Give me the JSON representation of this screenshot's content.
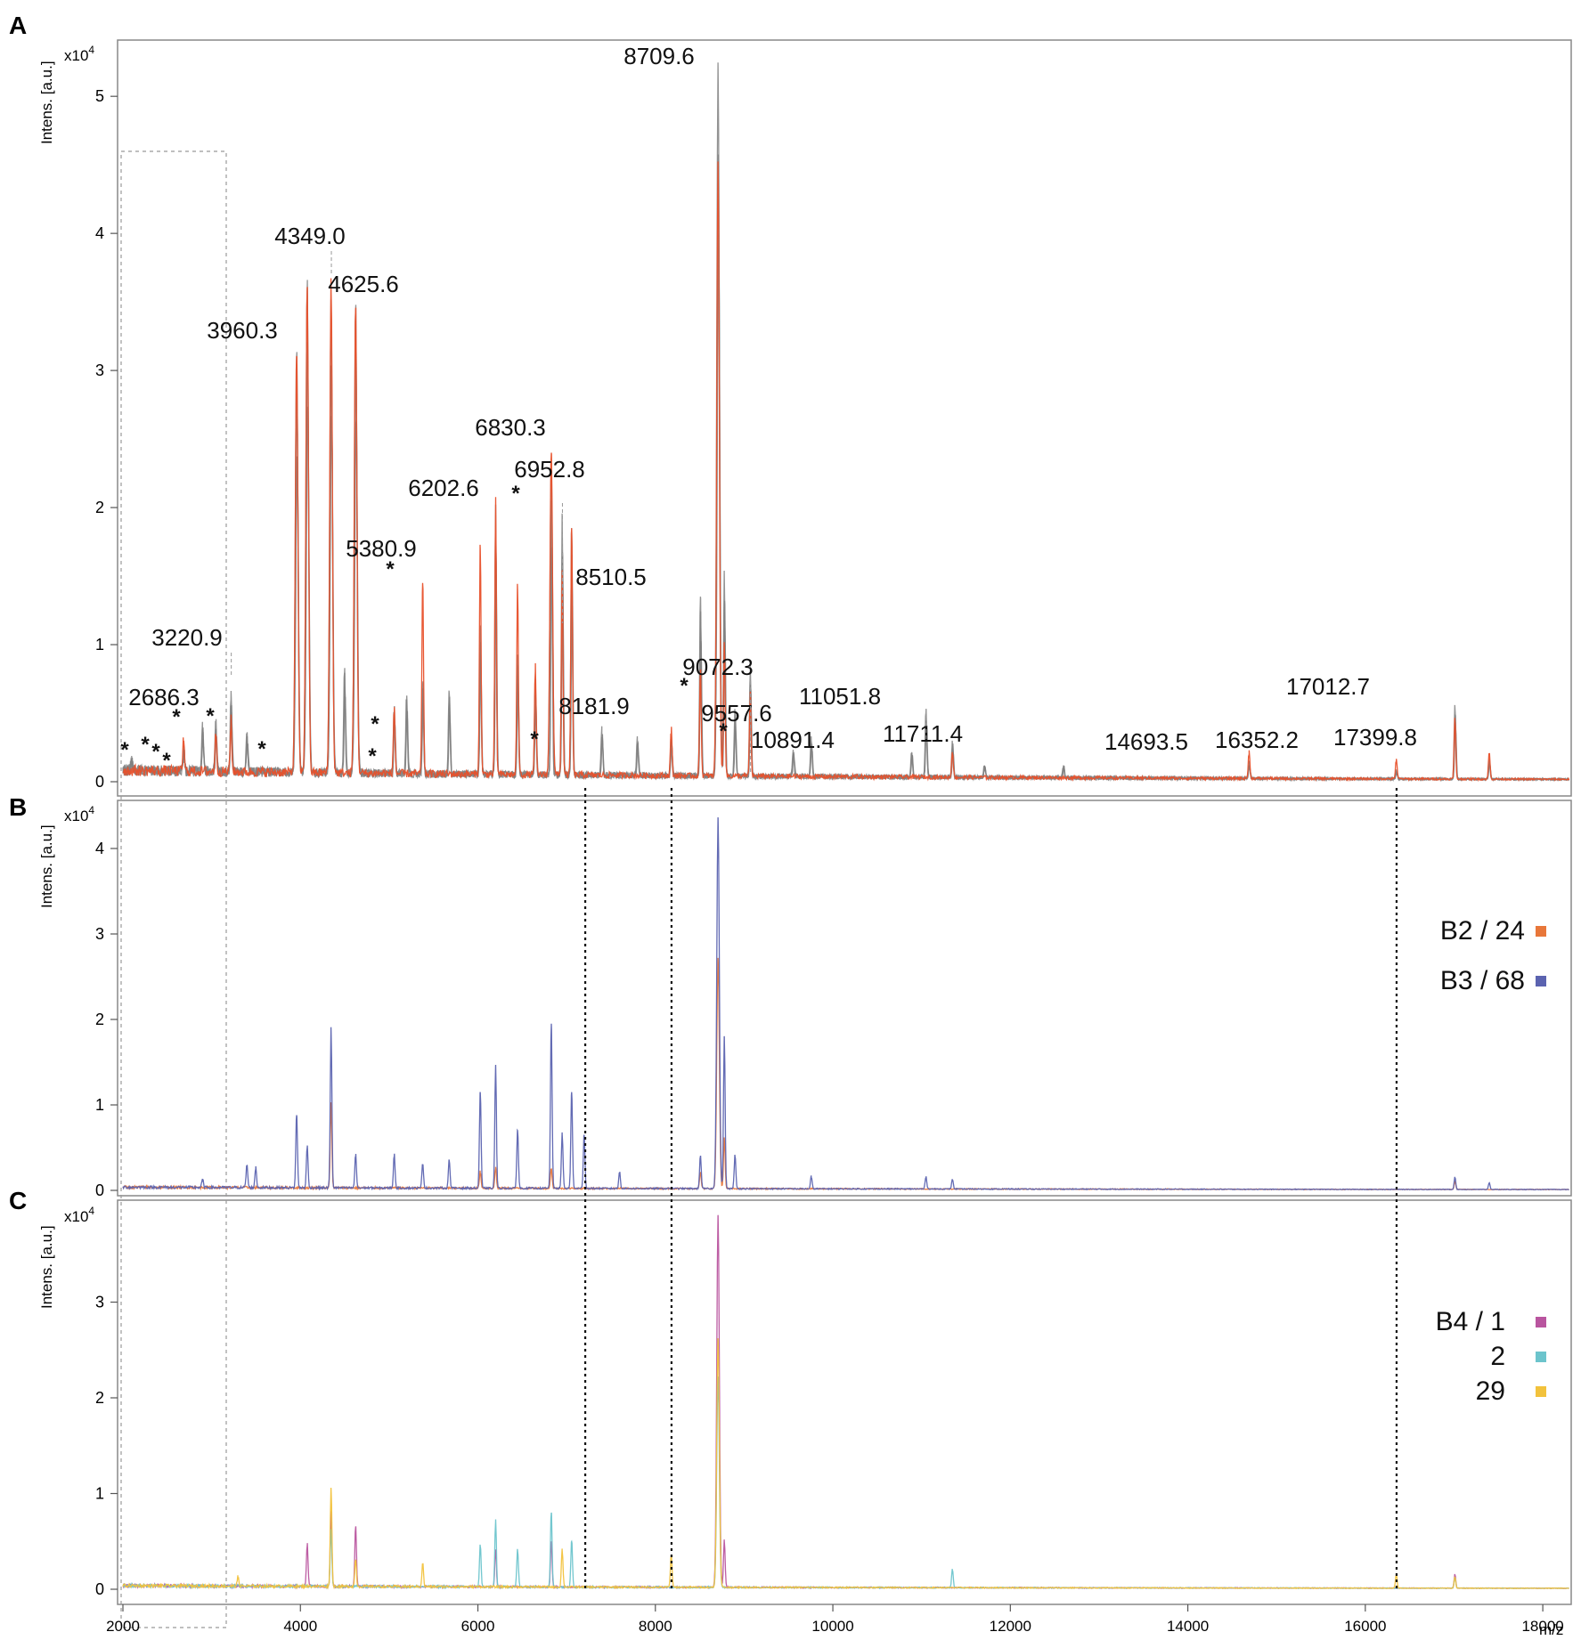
{
  "chart_data": [
    {
      "panel": "A",
      "type": "line",
      "y_unit": "x10^4",
      "ylabel": "Intens. [a.u.]",
      "xlim": [
        2000,
        18300
      ],
      "ylim": [
        0,
        5.3
      ],
      "yticks": [
        "0",
        "1",
        "2",
        "3",
        "4",
        "5"
      ],
      "series": [
        {
          "color": "#808080",
          "peaks": [
            [
              2100,
              0.1
            ],
            [
              2686.3,
              0.18
            ],
            [
              2900,
              0.35
            ],
            [
              3050,
              0.38
            ],
            [
              3220.9,
              0.6
            ],
            [
              3400,
              0.3
            ],
            [
              3960.3,
              3.1
            ],
            [
              4080,
              3.6
            ],
            [
              4349.0,
              3.45
            ],
            [
              4500,
              0.8
            ],
            [
              4625.6,
              3.45
            ],
            [
              5060,
              0.5
            ],
            [
              5200,
              0.6
            ],
            [
              5380.9,
              0.7
            ],
            [
              5680,
              0.65
            ],
            [
              6030,
              1.1
            ],
            [
              6202.6,
              1.95
            ],
            [
              6450,
              0.9
            ],
            [
              6650,
              0.7
            ],
            [
              6830.3,
              2.25
            ],
            [
              6952.8,
              1.9
            ],
            [
              7060,
              1.85
            ],
            [
              7400,
              0.35
            ],
            [
              7800,
              0.3
            ],
            [
              8181.9,
              0.3
            ],
            [
              8510.5,
              1.35
            ],
            [
              8709.6,
              5.2
            ],
            [
              8780,
              1.5
            ],
            [
              8900,
              0.5
            ],
            [
              9072.3,
              0.8
            ],
            [
              9557.6,
              0.2
            ],
            [
              9760,
              0.3
            ],
            [
              10891.4,
              0.2
            ],
            [
              11051.8,
              0.5
            ],
            [
              11350,
              0.28
            ],
            [
              11711.4,
              0.1
            ],
            [
              12600,
              0.1
            ],
            [
              14693.5,
              0.12
            ],
            [
              16352.2,
              0.06
            ],
            [
              17012.7,
              0.55
            ],
            [
              17399.8,
              0.15
            ]
          ]
        },
        {
          "color": "#e8502a",
          "peaks": [
            [
              2686.3,
              0.25
            ],
            [
              3050,
              0.3
            ],
            [
              3220.9,
              0.4
            ],
            [
              3960.3,
              3.1
            ],
            [
              4080,
              3.6
            ],
            [
              4349.0,
              3.6
            ],
            [
              4625.6,
              3.45
            ],
            [
              5060,
              0.5
            ],
            [
              5380.9,
              1.45
            ],
            [
              6030,
              1.7
            ],
            [
              6202.6,
              2.0
            ],
            [
              6450,
              1.4
            ],
            [
              6650,
              0.8
            ],
            [
              6830.3,
              2.4
            ],
            [
              6952.8,
              1.5
            ],
            [
              7060,
              1.85
            ],
            [
              8181.9,
              0.35
            ],
            [
              8510.5,
              0.8
            ],
            [
              8709.6,
              4.5
            ],
            [
              8780,
              1.0
            ],
            [
              9072.3,
              0.6
            ],
            [
              11350,
              0.2
            ],
            [
              14693.5,
              0.2
            ],
            [
              16352.2,
              0.15
            ],
            [
              17012.7,
              0.45
            ],
            [
              17399.8,
              0.2
            ]
          ]
        }
      ],
      "peak_labels": [
        {
          "x": 8709.6,
          "text": "8709.6"
        },
        {
          "x": 4349.0,
          "text": "4349.0"
        },
        {
          "x": 4625.6,
          "text": "4625.6"
        },
        {
          "x": 3960.3,
          "text": "3960.3"
        },
        {
          "x": 6830.3,
          "text": "6830.3"
        },
        {
          "x": 6952.8,
          "text": "6952.8"
        },
        {
          "x": 6202.6,
          "text": "6202.6"
        },
        {
          "x": 5380.9,
          "text": "5380.9"
        },
        {
          "x": 8510.5,
          "text": "8510.5"
        },
        {
          "x": 3220.9,
          "text": "3220.9"
        },
        {
          "x": 9072.3,
          "text": "9072.3"
        },
        {
          "x": 2686.3,
          "text": "2686.3"
        },
        {
          "x": 11051.8,
          "text": "11051.8"
        },
        {
          "x": 8181.9,
          "text": "8181.9"
        },
        {
          "x": 9557.6,
          "text": "9557.6"
        },
        {
          "x": 17012.7,
          "text": "17012.7"
        },
        {
          "x": 11711.4,
          "text": "11711.4"
        },
        {
          "x": 10891.4,
          "text": "10891.4"
        },
        {
          "x": 14693.5,
          "text": "14693.5"
        },
        {
          "x": 16352.2,
          "text": "16352.2"
        },
        {
          "x": 17399.8,
          "text": "17399.8"
        }
      ],
      "asterisk_marks": [
        "*",
        "*",
        "*",
        "*",
        "*",
        "*",
        "*",
        "*",
        "*",
        "*",
        "*",
        "*",
        "*",
        "*"
      ]
    },
    {
      "panel": "B",
      "type": "line",
      "y_unit": "x10^4",
      "ylabel": "Intens. [a.u.]",
      "xlim": [
        2000,
        18300
      ],
      "ylim": [
        0,
        4.5
      ],
      "yticks": [
        "0",
        "1",
        "2",
        "3",
        "4"
      ],
      "series": [
        {
          "name": "B2 / 24",
          "color": "#e8773a",
          "peaks": [
            [
              4349.0,
              1.0
            ],
            [
              6030,
              0.2
            ],
            [
              6202.6,
              0.25
            ],
            [
              6830.3,
              0.25
            ],
            [
              8510.5,
              0.2
            ],
            [
              8709.6,
              2.7
            ],
            [
              8780,
              0.6
            ],
            [
              17012.7,
              0.1
            ]
          ]
        },
        {
          "name": "B3 / 68",
          "color": "#5b63b0",
          "peaks": [
            [
              2900,
              0.1
            ],
            [
              3400,
              0.28
            ],
            [
              3500,
              0.25
            ],
            [
              3960.3,
              0.88
            ],
            [
              4080,
              0.5
            ],
            [
              4349.0,
              1.88
            ],
            [
              4625.6,
              0.4
            ],
            [
              5060,
              0.4
            ],
            [
              5380.9,
              0.3
            ],
            [
              5680,
              0.35
            ],
            [
              6030,
              1.15
            ],
            [
              6202.6,
              1.45
            ],
            [
              6450,
              0.7
            ],
            [
              6830.3,
              1.95
            ],
            [
              6952.8,
              0.65
            ],
            [
              7060,
              1.15
            ],
            [
              7200,
              0.65
            ],
            [
              7600,
              0.2
            ],
            [
              8510.5,
              0.4
            ],
            [
              8709.6,
              4.35
            ],
            [
              8780,
              1.8
            ],
            [
              8900,
              0.4
            ],
            [
              9760,
              0.15
            ],
            [
              11051.8,
              0.15
            ],
            [
              11350,
              0.12
            ],
            [
              17012.7,
              0.15
            ],
            [
              17399.8,
              0.08
            ]
          ]
        }
      ],
      "legend_location": "right"
    },
    {
      "panel": "C",
      "type": "line",
      "y_unit": "x10^4",
      "ylabel": "Intens. [a.u.]",
      "xlim": [
        2000,
        18300
      ],
      "ylim": [
        0,
        4.0
      ],
      "yticks": [
        "0",
        "1",
        "2",
        "3"
      ],
      "xlabel": "m/z",
      "xticks": [
        "2000",
        "4000",
        "6000",
        "8000",
        "10000",
        "12000",
        "14000",
        "16000",
        "18000"
      ],
      "series": [
        {
          "name": "B4 / 1",
          "color": "#b9559f",
          "peaks": [
            [
              4080,
              0.45
            ],
            [
              4349.0,
              0.8
            ],
            [
              4625.6,
              0.65
            ],
            [
              6202.6,
              0.4
            ],
            [
              6830.3,
              0.5
            ],
            [
              8709.6,
              3.9
            ],
            [
              8780,
              0.5
            ],
            [
              17012.7,
              0.15
            ]
          ]
        },
        {
          "name": "2",
          "color": "#6cc4cc",
          "peaks": [
            [
              4349.0,
              0.6
            ],
            [
              6030,
              0.45
            ],
            [
              6202.6,
              0.7
            ],
            [
              6450,
              0.4
            ],
            [
              6830.3,
              0.8
            ],
            [
              7060,
              0.5
            ],
            [
              8709.6,
              2.2
            ],
            [
              11350,
              0.2
            ],
            [
              17012.7,
              0.12
            ]
          ]
        },
        {
          "name": "29",
          "color": "#f2c23c",
          "peaks": [
            [
              3300,
              0.1
            ],
            [
              4349.0,
              1.05
            ],
            [
              4625.6,
              0.3
            ],
            [
              5380.9,
              0.25
            ],
            [
              6952.8,
              0.4
            ],
            [
              8181.9,
              0.35
            ],
            [
              8709.6,
              2.6
            ],
            [
              16352.2,
              0.15
            ],
            [
              17012.7,
              0.12
            ]
          ]
        }
      ],
      "legend_location": "right"
    }
  ],
  "panels": {
    "A": {
      "letter": "A",
      "unit_prefix": "x10",
      "unit_exp": "4",
      "ylabel": "Intens. [a.u.]"
    },
    "B": {
      "letter": "B",
      "unit_prefix": "x10",
      "unit_exp": "4",
      "ylabel": "Intens. [a.u.]"
    },
    "C": {
      "letter": "C",
      "unit_prefix": "x10",
      "unit_exp": "4",
      "ylabel": "Intens. [a.u.]"
    }
  },
  "legends": {
    "B": [
      {
        "label": "B2 / 24",
        "color": "#e8773a"
      },
      {
        "label": "B3 / 68",
        "color": "#5b63b0"
      }
    ],
    "C": [
      {
        "label": "B4 / 1",
        "color": "#b9559f"
      },
      {
        "label": "2",
        "color": "#6cc4cc"
      },
      {
        "label": "29",
        "color": "#f2c23c"
      }
    ]
  },
  "dotted_marker_mz": [
    7210,
    8181.9,
    16352.2
  ],
  "roi_box_mz": [
    2000,
    3300
  ],
  "x_axis_label": "m/z"
}
